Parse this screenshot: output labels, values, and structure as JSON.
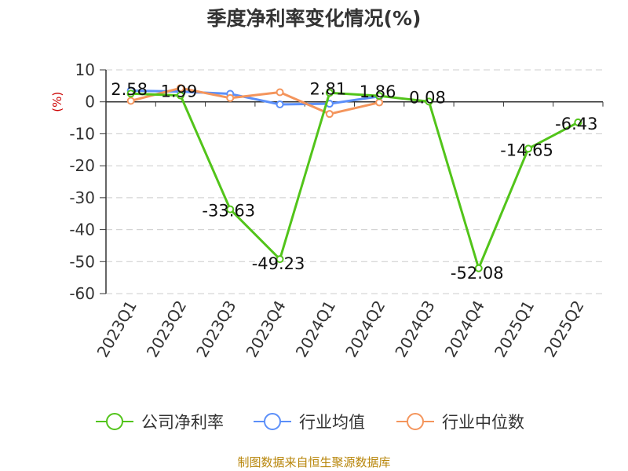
{
  "title": "季度净利率变化情况(%)",
  "source": "制图数据来自恒生聚源数据库",
  "chart_data": {
    "type": "line",
    "title": "季度净利率变化情况(%)",
    "ylabel": "(%)",
    "xlabel": "",
    "categories": [
      "2023Q1",
      "2023Q2",
      "2023Q3",
      "2023Q4",
      "2024Q1",
      "2024Q2",
      "2024Q3",
      "2024Q4",
      "2025Q1",
      "2025Q2"
    ],
    "ylim": [
      -60,
      10
    ],
    "yticks": [
      10,
      0,
      -10,
      -20,
      -30,
      -40,
      -50,
      -60
    ],
    "grid": true,
    "legend_position": "bottom",
    "series": [
      {
        "name": "公司净利率",
        "color": "#52c41a",
        "values": [
          2.58,
          1.99,
          -33.63,
          -49.23,
          2.81,
          1.86,
          0.08,
          -52.08,
          -14.65,
          -6.43
        ],
        "labels": [
          "2.58",
          "1.99",
          "-33.63",
          "-49.23",
          "2.81",
          "1.86",
          "0.08",
          "-52.08",
          "-14.65",
          "-6.43"
        ]
      },
      {
        "name": "行业均值",
        "color": "#5b8ff9",
        "values": [
          3.5,
          3.2,
          2.5,
          -0.8,
          -0.6,
          1.7,
          null,
          null,
          null,
          null
        ]
      },
      {
        "name": "行业中位数",
        "color": "#f4955c",
        "values": [
          0.3,
          4.3,
          1.2,
          3.0,
          -3.8,
          -0.2,
          null,
          null,
          null,
          null
        ]
      }
    ]
  }
}
